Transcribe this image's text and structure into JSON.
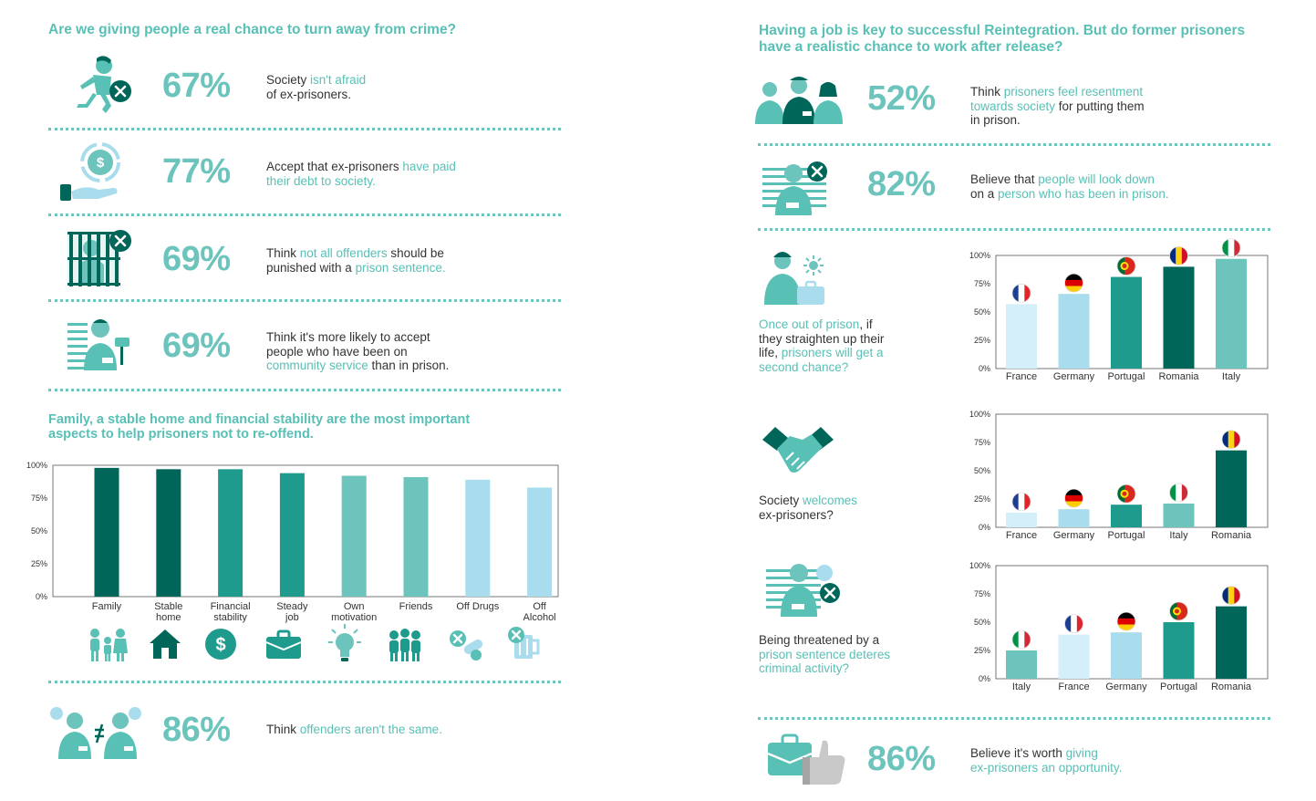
{
  "left": {
    "heading1": "Are we giving people a real chance to turn away from crime?",
    "stats": [
      {
        "pct": "67%",
        "parts": [
          {
            "t": "Society ",
            "h": false
          },
          {
            "t": "isn't afraid",
            "h": true
          },
          {
            "t": "\nof ex-prisoners.",
            "h": false
          }
        ],
        "icon": "thief-crossed-icon"
      },
      {
        "pct": "77%",
        "parts": [
          {
            "t": "Accept that ex-prisoners ",
            "h": false
          },
          {
            "t": "have paid\ntheir debt to society.",
            "h": true
          }
        ],
        "icon": "money-hand-icon"
      },
      {
        "pct": "69%",
        "parts": [
          {
            "t": "Think ",
            "h": false
          },
          {
            "t": "not all offenders",
            "h": true
          },
          {
            "t": " should be\npunished with a ",
            "h": false
          },
          {
            "t": "prison sentence.",
            "h": true
          }
        ],
        "icon": "prison-bars-icon"
      },
      {
        "pct": "69%",
        "parts": [
          {
            "t": "Think it's more likely to accept\npeople who have been on\n",
            "h": false
          },
          {
            "t": "community service",
            "h": true
          },
          {
            "t": " than in prison.",
            "h": false
          }
        ],
        "icon": "prisoner-painting-icon"
      }
    ],
    "heading2": "Family, a stable home and financial stability are the most important aspects to help prisoners not to re-offend.",
    "stat_bottom": {
      "pct": "86%",
      "parts": [
        {
          "t": "Think ",
          "h": false
        },
        {
          "t": "offenders aren't the same.",
          "h": true
        }
      ],
      "icon": "prisoners-not-equal-icon"
    }
  },
  "right": {
    "heading": "Having a job is key to successful Reintegration. But do former prisoners have a realistic chance to work after release?",
    "stats": [
      {
        "pct": "52%",
        "parts": [
          {
            "t": "Think ",
            "h": false
          },
          {
            "t": "prisoners feel resentment\ntowards society",
            "h": true
          },
          {
            "t": " for putting them\nin prison.",
            "h": false
          }
        ],
        "icon": "three-people-icon"
      },
      {
        "pct": "82%",
        "parts": [
          {
            "t": "Believe that ",
            "h": false
          },
          {
            "t": "people will look down",
            "h": true
          },
          {
            "t": "\non a ",
            "h": false
          },
          {
            "t": "person who has been in prison.",
            "h": true
          }
        ],
        "icon": "prisoner-crossed-icon"
      }
    ],
    "questions": [
      {
        "parts": [
          {
            "t": "Once out of prison",
            "h": true
          },
          {
            "t": ", if\nthey straighten up their\nlife, ",
            "h": false
          },
          {
            "t": "prisoners will get a\nsecond chance?",
            "h": true
          }
        ],
        "icon": "worker-briefcase-icon"
      },
      {
        "parts": [
          {
            "t": "Society ",
            "h": false
          },
          {
            "t": "welcomes",
            "h": true
          },
          {
            "t": "\nex-prisoners?",
            "h": false
          }
        ],
        "icon": "handshake-icon"
      },
      {
        "parts": [
          {
            "t": "Being threatened by a\n",
            "h": false
          },
          {
            "t": "prison sentence deteres\ncriminal activity?",
            "h": true
          }
        ],
        "icon": "prisoner-threat-icon"
      }
    ],
    "stat_bottom": {
      "pct": "86%",
      "parts": [
        {
          "t": "Believe it's worth ",
          "h": false
        },
        {
          "t": "giving\nex-prisoners an opportunity.",
          "h": true
        }
      ],
      "icon": "briefcase-thumbs-up-icon"
    }
  },
  "chart_data": [
    {
      "type": "bar",
      "categories": [
        "Family",
        "Stable\nhome",
        "Financial\nstability",
        "Steady\njob",
        "Own\nmotivation",
        "Friends",
        "Off Drugs",
        "Off\nAlcohol"
      ],
      "values": [
        98,
        97,
        97,
        94,
        92,
        91,
        89,
        83
      ],
      "colors": [
        "#00665a",
        "#00665a",
        "#1f9b8e",
        "#1f9b8e",
        "#6cc4bc",
        "#6cc4bc",
        "#a9dcec",
        "#a9dcec"
      ],
      "category_icons": [
        "family-icon",
        "house-icon",
        "dollar-icon",
        "briefcase-icon",
        "lightbulb-icon",
        "group-icon",
        "pills-crossed-icon",
        "beer-crossed-icon"
      ],
      "yticks": [
        "0%",
        "25%",
        "50%",
        "75%",
        "100%"
      ],
      "ylim": [
        0,
        100
      ]
    },
    {
      "type": "bar",
      "categories": [
        "France",
        "Germany",
        "Portugal",
        "Romania",
        "Italy"
      ],
      "values": [
        57,
        66,
        81,
        90,
        97
      ],
      "colors": [
        "#d4eefa",
        "#a9dcec",
        "#1f9b8e",
        "#00665a",
        "#6cc4bc"
      ],
      "flags": [
        "france",
        "germany",
        "portugal",
        "romania",
        "italy"
      ],
      "yticks": [
        "0%",
        "25%",
        "50%",
        "75%",
        "100%"
      ],
      "ylim": [
        0,
        100
      ]
    },
    {
      "type": "bar",
      "categories": [
        "France",
        "Germany",
        "Portugal",
        "Italy",
        "Romania"
      ],
      "values": [
        13,
        16,
        20,
        21,
        68
      ],
      "colors": [
        "#d4eefa",
        "#a9dcec",
        "#1f9b8e",
        "#6cc4bc",
        "#00665a"
      ],
      "flags": [
        "france",
        "germany",
        "portugal",
        "italy",
        "romania"
      ],
      "yticks": [
        "0%",
        "25%",
        "50%",
        "75%",
        "100%"
      ],
      "ylim": [
        0,
        100
      ]
    },
    {
      "type": "bar",
      "categories": [
        "Italy",
        "France",
        "Germany",
        "Portugal",
        "Romania"
      ],
      "values": [
        25,
        39,
        41,
        50,
        64
      ],
      "colors": [
        "#6cc4bc",
        "#d4eefa",
        "#a9dcec",
        "#1f9b8e",
        "#00665a"
      ],
      "flags": [
        "italy",
        "france",
        "germany",
        "portugal",
        "romania"
      ],
      "yticks": [
        "0%",
        "25%",
        "50%",
        "75%",
        "100%"
      ],
      "ylim": [
        0,
        100
      ]
    }
  ]
}
